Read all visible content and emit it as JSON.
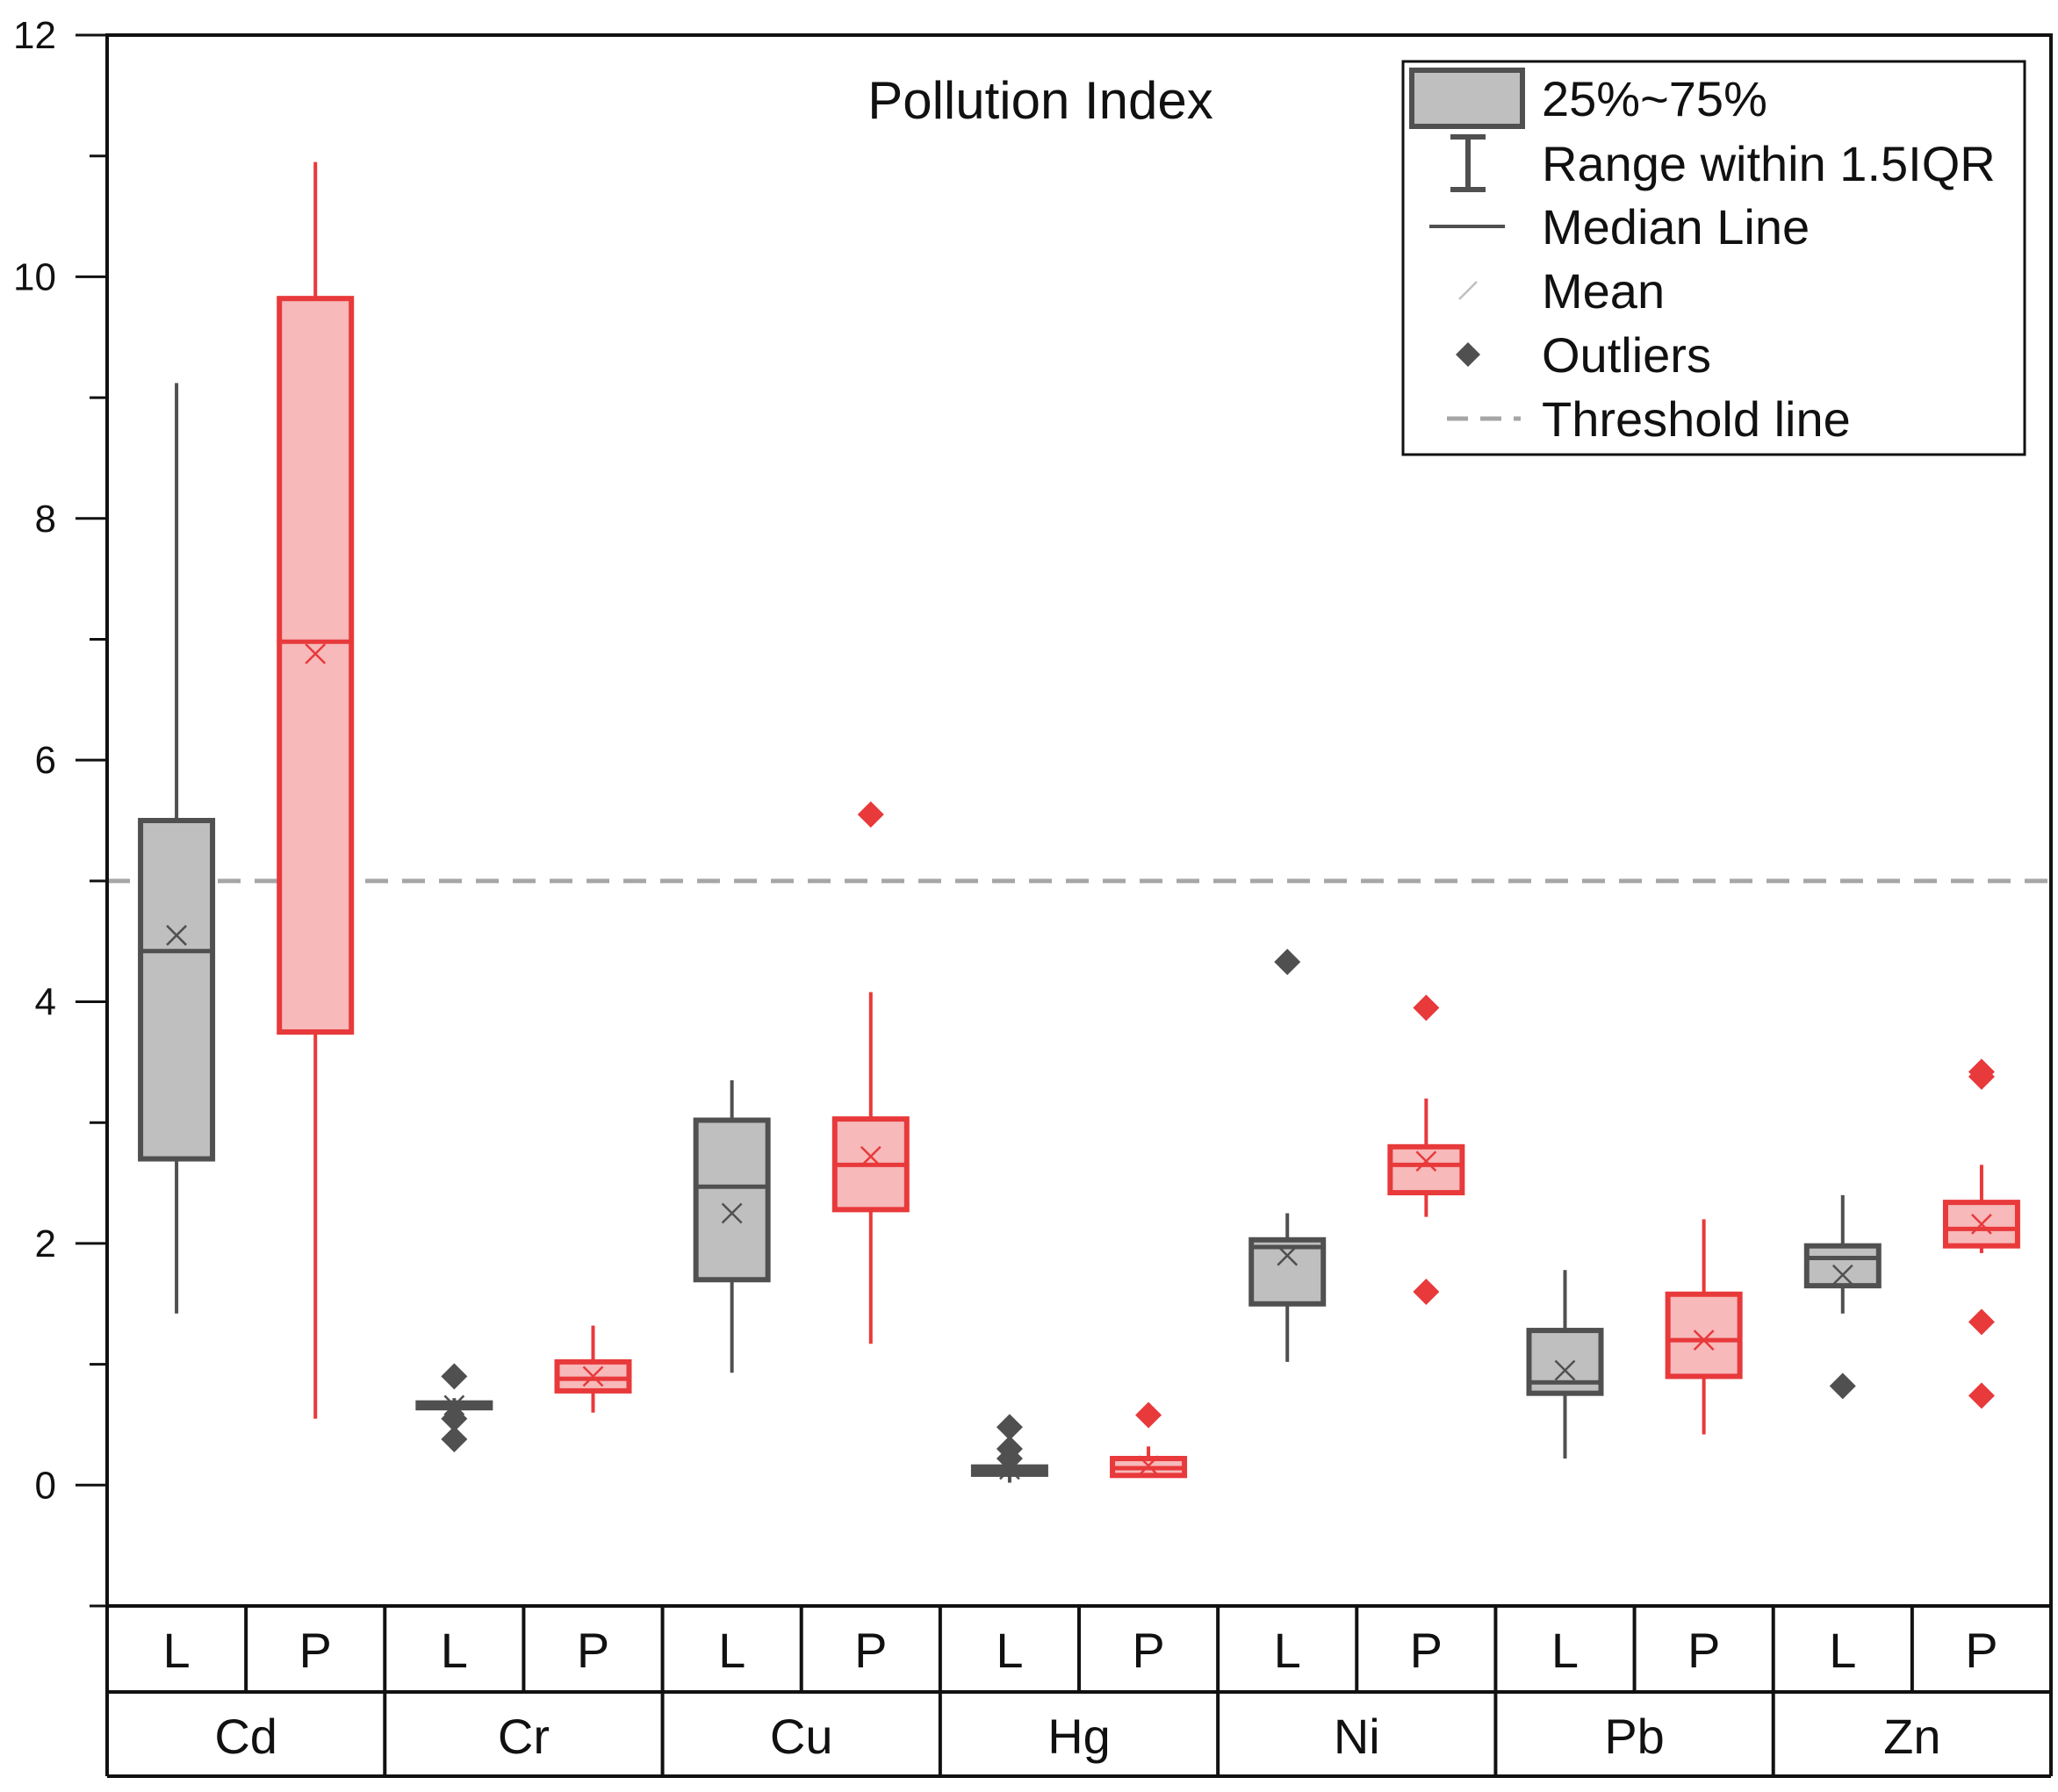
{
  "chart_data": {
    "type": "box",
    "title": "Pollution Index",
    "xlabel": "",
    "ylabel": "",
    "ylim": [
      -1,
      12
    ],
    "yticks": [
      0,
      2,
      4,
      6,
      8,
      10,
      12
    ],
    "threshold": 5,
    "groups": [
      "Cd",
      "Cr",
      "Cu",
      "Hg",
      "Ni",
      "Pb",
      "Zn"
    ],
    "subgroups": [
      "L",
      "P"
    ],
    "colors": {
      "L_stroke": "#505050",
      "L_fill": "#bfbfbf",
      "P_stroke": "#e8393b",
      "P_fill": "#f7b9ba",
      "threshold": "#a6a6a6",
      "axis": "#111111"
    },
    "series": [
      {
        "group": "Cd",
        "sub": "L",
        "whisker_low": 1.42,
        "q1": 2.7,
        "median": 4.42,
        "q3": 5.5,
        "whisker_high": 9.12,
        "mean": 4.55,
        "outliers": []
      },
      {
        "group": "Cd",
        "sub": "P",
        "whisker_low": 0.55,
        "q1": 3.75,
        "median": 6.98,
        "q3": 9.82,
        "whisker_high": 10.95,
        "mean": 6.88,
        "outliers": []
      },
      {
        "group": "Cr",
        "sub": "L",
        "whisker_low": 0.62,
        "q1": 0.64,
        "median": 0.66,
        "q3": 0.68,
        "whisker_high": 0.72,
        "mean": 0.66,
        "outliers": [
          0.9,
          0.55,
          0.38
        ]
      },
      {
        "group": "Cr",
        "sub": "P",
        "whisker_low": 0.6,
        "q1": 0.78,
        "median": 0.88,
        "q3": 1.02,
        "whisker_high": 1.32,
        "mean": 0.9,
        "outliers": []
      },
      {
        "group": "Cu",
        "sub": "L",
        "whisker_low": 0.93,
        "q1": 1.7,
        "median": 2.47,
        "q3": 3.02,
        "whisker_high": 3.35,
        "mean": 2.25,
        "outliers": []
      },
      {
        "group": "Cu",
        "sub": "P",
        "whisker_low": 1.17,
        "q1": 2.28,
        "median": 2.65,
        "q3": 3.03,
        "whisker_high": 4.08,
        "mean": 2.72,
        "outliers": [
          5.55
        ]
      },
      {
        "group": "Hg",
        "sub": "L",
        "whisker_low": 0.02,
        "q1": 0.09,
        "median": 0.12,
        "q3": 0.15,
        "whisker_high": 0.2,
        "mean": 0.13,
        "outliers": [
          0.48,
          0.3,
          0.22
        ]
      },
      {
        "group": "Hg",
        "sub": "P",
        "whisker_low": 0.06,
        "q1": 0.08,
        "median": 0.14,
        "q3": 0.22,
        "whisker_high": 0.32,
        "mean": 0.16,
        "outliers": [
          0.58
        ]
      },
      {
        "group": "Ni",
        "sub": "L",
        "whisker_low": 1.02,
        "q1": 1.5,
        "median": 1.97,
        "q3": 2.03,
        "whisker_high": 2.25,
        "mean": 1.9,
        "outliers": [
          4.33
        ]
      },
      {
        "group": "Ni",
        "sub": "P",
        "whisker_low": 2.22,
        "q1": 2.42,
        "median": 2.65,
        "q3": 2.8,
        "whisker_high": 3.2,
        "mean": 2.68,
        "outliers": [
          3.95,
          1.6
        ]
      },
      {
        "group": "Pb",
        "sub": "L",
        "whisker_low": 0.22,
        "q1": 0.76,
        "median": 0.85,
        "q3": 1.28,
        "whisker_high": 1.78,
        "mean": 0.95,
        "outliers": []
      },
      {
        "group": "Pb",
        "sub": "P",
        "whisker_low": 0.42,
        "q1": 0.9,
        "median": 1.2,
        "q3": 1.58,
        "whisker_high": 2.2,
        "mean": 1.2,
        "outliers": []
      },
      {
        "group": "Zn",
        "sub": "L",
        "whisker_low": 1.42,
        "q1": 1.65,
        "median": 1.88,
        "q3": 1.98,
        "whisker_high": 2.4,
        "mean": 1.74,
        "outliers": [
          0.82
        ]
      },
      {
        "group": "Zn",
        "sub": "P",
        "whisker_low": 1.92,
        "q1": 1.98,
        "median": 2.12,
        "q3": 2.34,
        "whisker_high": 2.65,
        "mean": 2.16,
        "outliers": [
          3.42,
          3.38,
          1.35,
          0.74
        ]
      }
    ],
    "legend": {
      "position": "top-right",
      "entries": [
        {
          "key": "box",
          "label": "25%~75%"
        },
        {
          "key": "range",
          "label": "Range within 1.5IQR"
        },
        {
          "key": "median",
          "label": "Median Line"
        },
        {
          "key": "mean",
          "label": "Mean"
        },
        {
          "key": "outliers",
          "label": "Outliers"
        },
        {
          "key": "threshold",
          "label": "Threshold line"
        }
      ]
    }
  }
}
